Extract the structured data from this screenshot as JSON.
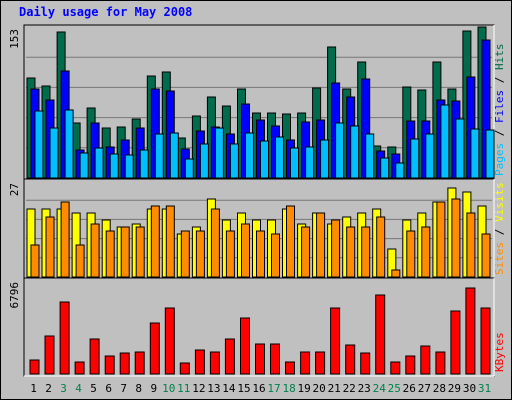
{
  "chart_data": {
    "type": "bar",
    "title": "Daily usage for May 2008",
    "x": [
      "1",
      "2",
      "3",
      "4",
      "5",
      "6",
      "7",
      "8",
      "9",
      "10",
      "11",
      "12",
      "13",
      "14",
      "15",
      "16",
      "17",
      "18",
      "19",
      "20",
      "21",
      "22",
      "23",
      "24",
      "25",
      "26",
      "27",
      "28",
      "29",
      "30",
      "31"
    ],
    "weekend_days": [
      "3",
      "4",
      "10",
      "11",
      "17",
      "18",
      "24",
      "25",
      "31"
    ],
    "panels": [
      {
        "name": "hits-pages-files",
        "ymax": 153,
        "ymax_label": "153",
        "grid": true,
        "series": [
          {
            "name": "Hits",
            "color": "#006c4c",
            "values": [
              101,
              93,
              148,
              56,
              71,
              51,
              52,
              60,
              103,
              107,
              41,
              63,
              82,
              73,
              90,
              66,
              66,
              65,
              66,
              91,
              133,
              90,
              118,
              32,
              31,
              92,
              89,
              118,
              90,
              149,
              153
            ]
          },
          {
            "name": "Files",
            "color": "#0000ff",
            "values": [
              90,
              79,
              108,
              28,
              56,
              31,
              38,
              51,
              90,
              88,
              29,
              48,
              52,
              45,
              75,
              59,
              53,
              38,
              57,
              59,
              96,
              82,
              100,
              27,
              24,
              58,
              58,
              79,
              78,
              102,
              140
            ]
          },
          {
            "name": "Pages",
            "color": "#00bfff",
            "values": [
              68,
              51,
              69,
              25,
              30,
              24,
              23,
              28,
              45,
              46,
              19,
              34,
              51,
              34,
              46,
              37,
              42,
              30,
              31,
              38,
              56,
              53,
              45,
              20,
              15,
              40,
              45,
              74,
              60,
              50,
              49
            ]
          }
        ]
      },
      {
        "name": "visits-sites",
        "ymax": 27,
        "ymax_label": "27",
        "grid": true,
        "series": [
          {
            "name": "Visits",
            "color": "#ffff00",
            "values": [
              19,
              19,
              19,
              18,
              18,
              16,
              14,
              15,
              19,
              19,
              12,
              14,
              22,
              16,
              18,
              16,
              16,
              19,
              15,
              18,
              15,
              17,
              18,
              19,
              8,
              16,
              18,
              21,
              25,
              24,
              20
            ]
          },
          {
            "name": "Sites",
            "color": "#ff8c00",
            "values": [
              9,
              17,
              21,
              9,
              15,
              13,
              14,
              14,
              20,
              20,
              13,
              13,
              19,
              13,
              15,
              13,
              12,
              20,
              14,
              18,
              16,
              14,
              14,
              17,
              2,
              13,
              14,
              21,
              22,
              18,
              12
            ]
          }
        ]
      },
      {
        "name": "kbytes",
        "ymax": 6796,
        "ymax_label": "6796",
        "grid": false,
        "series": [
          {
            "name": "KBytes",
            "color": "#ff0000",
            "values": [
              986,
              2760,
              5220,
              900,
              2560,
              1280,
              1520,
              1580,
              3700,
              4780,
              780,
              1760,
              1560,
              2560,
              4060,
              2150,
              2150,
              900,
              1580,
              1560,
              4780,
              2110,
              1540,
              5680,
              860,
              1300,
              2060,
              1580,
              4580,
              6220,
              4780
            ]
          }
        ]
      }
    ],
    "legend_top": [
      {
        "text": "Pages",
        "color": "#00bfff"
      },
      {
        "text": " / ",
        "color": "#000000"
      },
      {
        "text": "Files",
        "color": "#0000ff"
      },
      {
        "text": " / ",
        "color": "#000000"
      },
      {
        "text": "Hits",
        "color": "#006c4c"
      }
    ],
    "legend_middle": [
      {
        "text": "Sites",
        "color": "#ff8c00"
      },
      {
        "text": " / ",
        "color": "#000000"
      },
      {
        "text": "Visits",
        "color": "#ffff00"
      }
    ],
    "legend_bottom": [
      {
        "text": "KBytes",
        "color": "#ff0000"
      }
    ],
    "colors": {
      "background": "#c0c0c0",
      "panel": "#c0c0c0",
      "grid": "#777777",
      "title": "#0000ff",
      "weekday_label": "#000000",
      "weekend_label": "#00804c"
    }
  }
}
